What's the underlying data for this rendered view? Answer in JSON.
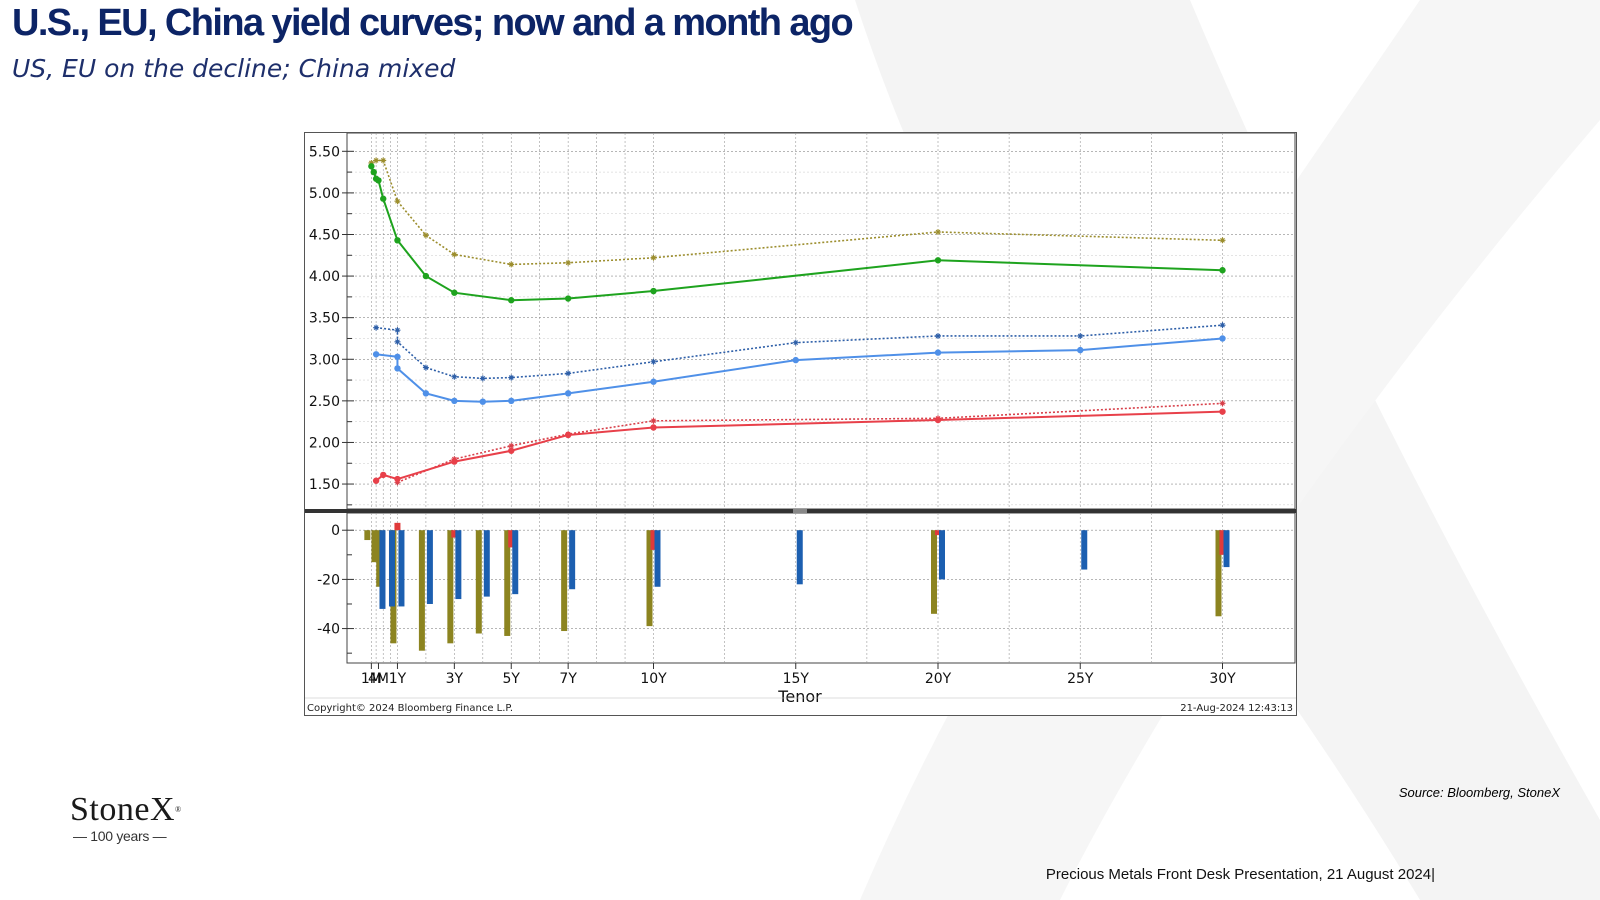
{
  "slide": {
    "title": "U.S., EU, China yield curves; now and a month ago",
    "subtitle": "US, EU on the decline; China mixed",
    "source": "Source: Bloomberg, StoneX",
    "footer": "Precious Metals Front Desk Presentation, 21 August 2024|"
  },
  "logo": {
    "name": "StoneX",
    "reg": "®",
    "tagline": "— 100 years —"
  },
  "chart_meta": {
    "copyright": "Copyright© 2024 Bloomberg Finance L.P.",
    "timestamp": "21-Aug-2024 12:43:13"
  },
  "chart_data": {
    "type": "line",
    "xlabel": "Tenor",
    "x_tick_labels": [
      "1M",
      "4M",
      "1Y",
      "3Y",
      "5Y",
      "7Y",
      "10Y",
      "15Y",
      "20Y",
      "25Y",
      "30Y"
    ],
    "x_tick_years": [
      0.083,
      0.333,
      1,
      3,
      5,
      7,
      10,
      15,
      20,
      25,
      30
    ],
    "upper_panel": {
      "ylim": [
        1.2,
        5.72
      ],
      "y_ticks": [
        "5.50",
        "5.00",
        "4.50",
        "4.00",
        "3.50",
        "3.00",
        "2.50",
        "2.00",
        "1.50"
      ],
      "grid": true,
      "series": [
        {
          "color": "#9c8e2e",
          "style": "dotted",
          "marker": "star",
          "x": [
            0.083,
            0.25,
            0.5,
            1,
            2,
            3,
            5,
            7,
            10,
            20,
            30
          ],
          "y": [
            5.36,
            5.39,
            5.39,
            4.9,
            4.49,
            4.26,
            4.14,
            4.16,
            4.22,
            4.53,
            4.43
          ]
        },
        {
          "color": "#1ea31e",
          "style": "solid",
          "marker": "dot",
          "x": [
            0.083,
            0.167,
            0.25,
            0.333,
            0.5,
            1,
            2,
            3,
            5,
            7,
            10,
            20,
            30
          ],
          "y": [
            5.32,
            5.25,
            5.17,
            5.15,
            4.93,
            4.43,
            4.0,
            3.8,
            3.71,
            3.73,
            3.82,
            4.19,
            4.07
          ]
        },
        {
          "color": "#2e5fa8",
          "style": "dotted",
          "marker": "star",
          "x": [
            0.25,
            1,
            1,
            2,
            3,
            4,
            5,
            7,
            10,
            15,
            20,
            25,
            30
          ],
          "y": [
            3.38,
            3.35,
            3.21,
            2.9,
            2.79,
            2.77,
            2.78,
            2.83,
            2.97,
            3.2,
            3.28,
            3.28,
            3.41
          ]
        },
        {
          "color": "#4f90e8",
          "style": "solid",
          "marker": "dot",
          "x": [
            0.25,
            1,
            1,
            2,
            3,
            4,
            5,
            7,
            10,
            15,
            20,
            25,
            30
          ],
          "y": [
            3.06,
            3.03,
            2.89,
            2.59,
            2.5,
            2.49,
            2.5,
            2.59,
            2.73,
            2.99,
            3.08,
            3.11,
            3.25
          ]
        },
        {
          "color": "#d8404a",
          "style": "dotted",
          "marker": "star",
          "x": [
            1,
            3,
            5,
            7,
            10,
            20,
            30
          ],
          "y": [
            1.52,
            1.8,
            1.96,
            2.1,
            2.26,
            2.29,
            2.47
          ]
        },
        {
          "color": "#e8404a",
          "style": "solid",
          "marker": "dot",
          "x": [
            0.25,
            0.5,
            1,
            3,
            5,
            7,
            10,
            20,
            30
          ],
          "y": [
            1.54,
            1.61,
            1.56,
            1.77,
            1.9,
            2.09,
            2.18,
            2.27,
            2.37
          ]
        }
      ]
    },
    "lower_panel": {
      "type": "bar",
      "ylim": [
        -54,
        7
      ],
      "y_ticks": [
        "0",
        "-20",
        "-40"
      ],
      "series": [
        {
          "color": "#8c8420",
          "x": [
            0.083,
            0.333,
            0.5,
            1,
            2,
            3,
            4,
            5,
            7,
            10,
            20,
            30
          ],
          "values": [
            -4,
            -13,
            -23,
            -46,
            -49,
            -46,
            -42,
            -43,
            -41,
            -39,
            -34,
            -35
          ]
        },
        {
          "color": "#e03a3a",
          "x": [
            1,
            3,
            5,
            10,
            20,
            30
          ],
          "values": [
            3,
            -3,
            -7,
            -8,
            -2,
            -10
          ]
        },
        {
          "color": "#1c5fb0",
          "x": [
            0.333,
            0.667,
            1,
            2,
            3,
            4,
            5,
            7,
            10,
            15,
            20,
            25,
            30
          ],
          "values": [
            -32,
            -31,
            -31,
            -30,
            -28,
            -27,
            -26,
            -24,
            -23,
            -22,
            -20,
            -16,
            -15
          ]
        }
      ]
    }
  }
}
